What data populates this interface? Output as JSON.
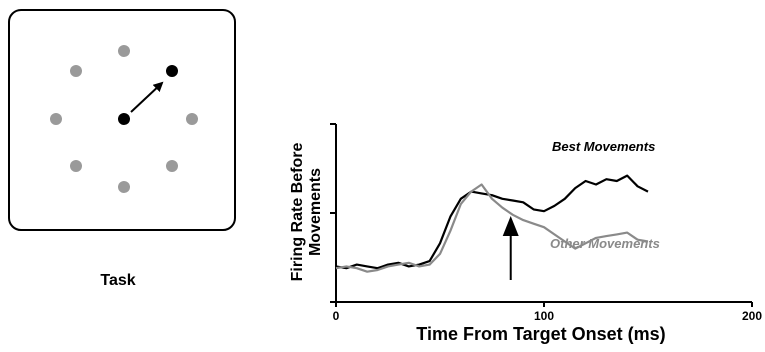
{
  "task_panel": {
    "label": "Task",
    "peripheral_target_color": "#9a9a9a",
    "active_target_color": "#000000",
    "center_dot_color": "#000000",
    "panel_border_color": "#000000"
  },
  "chart_data": {
    "type": "line",
    "xlabel": "Time From Target Onset (ms)",
    "ylabel": "Firing Rate Before Movements",
    "xlim": [
      0,
      200
    ],
    "x_ticks": [
      0,
      100,
      200
    ],
    "x_tick_labels": [
      "0",
      "100",
      "200"
    ],
    "y_ticks_count": 3,
    "y_tick_labels_visible": false,
    "grid": false,
    "series": [
      {
        "name": "Best Movements",
        "color": "#000000",
        "x": [
          0,
          5,
          10,
          15,
          20,
          25,
          30,
          35,
          40,
          45,
          50,
          55,
          60,
          65,
          70,
          75,
          80,
          85,
          90,
          95,
          100,
          105,
          110,
          115,
          120,
          125,
          130,
          135,
          140,
          145,
          150
        ],
        "y": [
          20,
          19,
          21,
          20,
          19,
          21,
          22,
          20,
          21,
          23,
          33,
          48,
          58,
          62,
          61,
          60,
          58,
          57,
          56,
          52,
          51,
          54,
          58,
          64,
          68,
          66,
          69,
          68,
          71,
          65,
          62
        ]
      },
      {
        "name": "Other Movements",
        "color": "#8a8a8a",
        "x": [
          0,
          5,
          10,
          15,
          20,
          25,
          30,
          35,
          40,
          45,
          50,
          55,
          60,
          65,
          70,
          75,
          80,
          85,
          90,
          95,
          100,
          105,
          110,
          115,
          120,
          125,
          130,
          135,
          140,
          145,
          150
        ],
        "y": [
          19,
          20,
          19,
          17,
          18,
          20,
          21,
          22,
          20,
          21,
          27,
          40,
          55,
          62,
          66,
          58,
          53,
          49,
          46,
          44,
          42,
          38,
          34,
          30,
          33,
          36,
          37,
          38,
          39,
          35,
          34
        ]
      }
    ],
    "annotations": [
      {
        "type": "arrow",
        "direction": "up",
        "x": 84
      }
    ]
  }
}
